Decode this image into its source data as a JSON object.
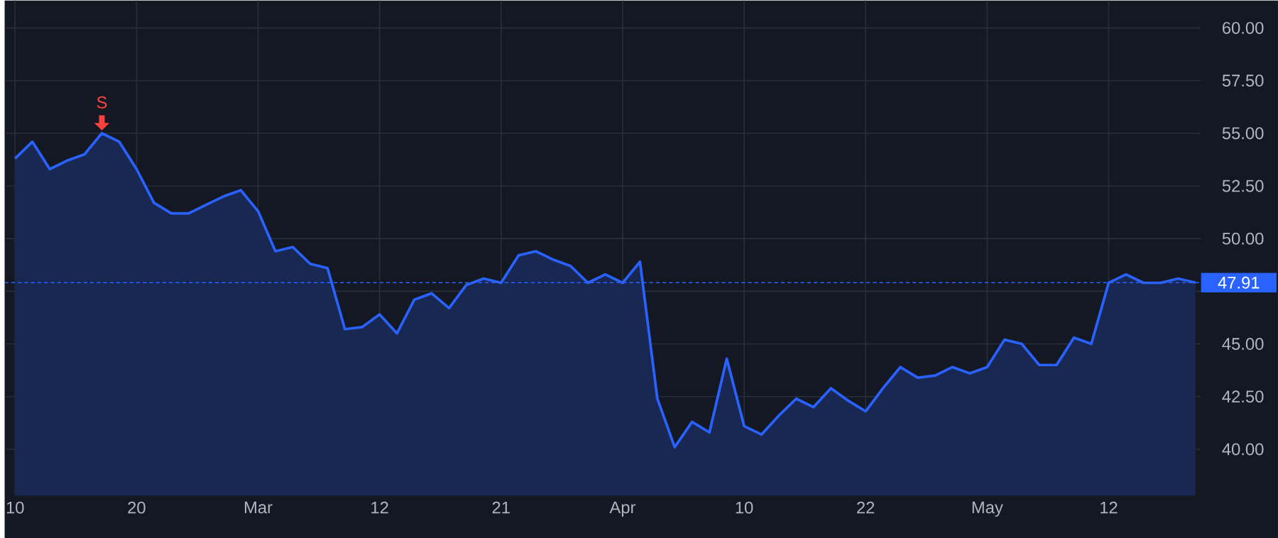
{
  "chart_data": {
    "type": "area",
    "categories": [
      "10",
      null,
      null,
      null,
      null,
      null,
      null,
      "20",
      null,
      null,
      null,
      null,
      null,
      null,
      "Mar",
      null,
      null,
      null,
      null,
      null,
      null,
      "12",
      null,
      null,
      null,
      null,
      null,
      null,
      "21",
      null,
      null,
      null,
      null,
      null,
      null,
      "Apr",
      null,
      null,
      null,
      null,
      null,
      null,
      "10",
      null,
      null,
      null,
      null,
      null,
      null,
      "22",
      null,
      null,
      null,
      null,
      null,
      null,
      "May",
      null,
      null,
      null,
      null,
      null,
      null,
      "12",
      null,
      null,
      null,
      null,
      null
    ],
    "series": [
      {
        "color": "#2962ff",
        "values": [
          53.8,
          54.6,
          53.3,
          53.7,
          54.0,
          55.0,
          54.6,
          53.3,
          51.7,
          51.2,
          51.2,
          51.6,
          52.0,
          52.3,
          51.3,
          49.4,
          49.6,
          48.8,
          48.6,
          45.7,
          45.8,
          46.4,
          45.5,
          47.1,
          47.4,
          46.7,
          47.8,
          48.1,
          47.9,
          49.2,
          49.4,
          49.0,
          48.7,
          47.9,
          48.3,
          47.9,
          48.9,
          42.4,
          40.1,
          41.3,
          40.8,
          44.3,
          41.1,
          40.7,
          41.6,
          42.4,
          42.0,
          42.9,
          42.3,
          41.8,
          42.9,
          43.9,
          43.4,
          43.5,
          43.9,
          43.6,
          43.9,
          45.2,
          45.0,
          44.0,
          44.0,
          45.3,
          45.0,
          47.9,
          48.3,
          47.9,
          47.9,
          48.1,
          47.91
        ]
      }
    ],
    "ylim": [
      37.8,
      61.3
    ],
    "yticks": [
      {
        "value": 40,
        "label": "40.00"
      },
      {
        "value": 42.5,
        "label": "42.50"
      },
      {
        "value": 45,
        "label": "45.00"
      },
      {
        "value": 47.5,
        "label": null
      },
      {
        "value": 50,
        "label": "50.00"
      },
      {
        "value": 52.5,
        "label": "52.50"
      },
      {
        "value": 55,
        "label": "55.00"
      },
      {
        "value": 57.5,
        "label": "57.50"
      },
      {
        "value": 60,
        "label": "60.00"
      }
    ],
    "grid": true,
    "ref_lines": [
      {
        "axis": "y",
        "value": 47.91,
        "label": "47.91",
        "color": "#2962ff",
        "line_style": "dashed"
      }
    ],
    "annotations": [
      {
        "text": "S",
        "y": 55.0
      }
    ]
  }
}
